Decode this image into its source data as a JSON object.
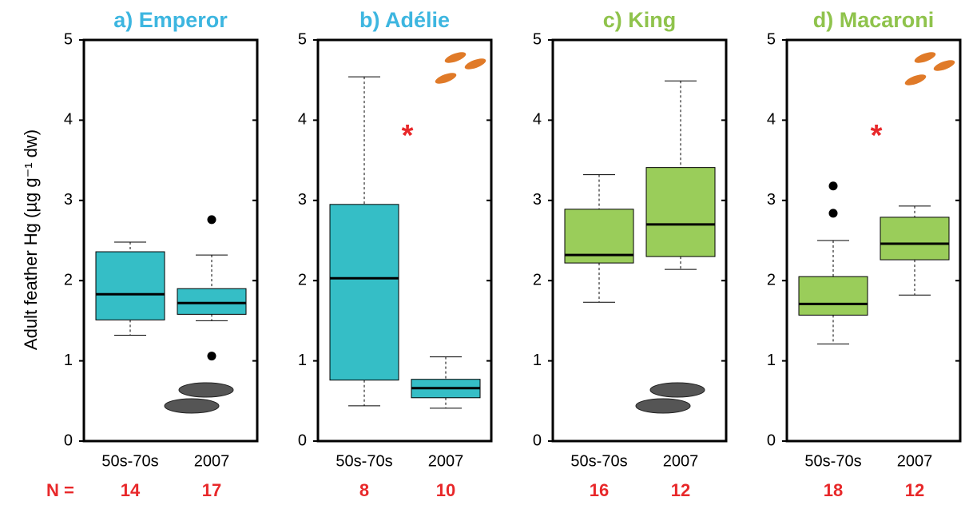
{
  "chart_data": [
    {
      "type": "box",
      "title": "a) Emperor",
      "title_color": "#3db6e0",
      "color": "#35bec6",
      "ylabel": "Adult feather Hg (µg g⁻¹ dw)",
      "n_label": "N =",
      "categories": [
        "50s-70s",
        "2007"
      ],
      "boxes": [
        {
          "min": 1.32,
          "q1": 1.51,
          "median": 1.83,
          "q3": 2.36,
          "max": 2.48,
          "outliers": []
        },
        {
          "min": 1.5,
          "q1": 1.58,
          "median": 1.72,
          "q3": 1.9,
          "max": 2.32,
          "outliers": [
            2.76,
            1.06
          ]
        }
      ],
      "n": [
        14,
        17
      ],
      "ylim": [
        0,
        5
      ],
      "yticks": [
        0,
        1,
        2,
        3,
        4,
        5
      ]
    },
    {
      "type": "box",
      "title": "b) Adélie",
      "title_color": "#3db6e0",
      "color": "#35bec6",
      "categories": [
        "50s-70s",
        "2007"
      ],
      "boxes": [
        {
          "min": 0.44,
          "q1": 0.76,
          "median": 2.03,
          "q3": 2.95,
          "max": 4.54,
          "outliers": []
        },
        {
          "min": 0.41,
          "q1": 0.54,
          "median": 0.66,
          "q3": 0.77,
          "max": 1.05,
          "outliers": []
        }
      ],
      "n": [
        8,
        10
      ],
      "annotation": "*",
      "ylim": [
        0,
        5
      ],
      "yticks": [
        0,
        1,
        2,
        3,
        4,
        5
      ]
    },
    {
      "type": "box",
      "title": "c) King",
      "title_color": "#8fc34c",
      "color": "#9acd5a",
      "categories": [
        "50s-70s",
        "2007"
      ],
      "boxes": [
        {
          "min": 1.73,
          "q1": 2.22,
          "median": 2.32,
          "q3": 2.89,
          "max": 3.32,
          "outliers": []
        },
        {
          "min": 2.14,
          "q1": 2.3,
          "median": 2.7,
          "q3": 3.41,
          "max": 4.49,
          "outliers": []
        }
      ],
      "n": [
        16,
        12
      ],
      "ylim": [
        0,
        5
      ],
      "yticks": [
        0,
        1,
        2,
        3,
        4,
        5
      ]
    },
    {
      "type": "box",
      "title": "d) Macaroni",
      "title_color": "#8fc34c",
      "color": "#9acd5a",
      "categories": [
        "50s-70s",
        "2007"
      ],
      "boxes": [
        {
          "min": 1.21,
          "q1": 1.57,
          "median": 1.71,
          "q3": 2.05,
          "max": 2.5,
          "outliers": [
            2.84,
            3.18
          ]
        },
        {
          "min": 1.82,
          "q1": 2.26,
          "median": 2.46,
          "q3": 2.79,
          "max": 2.93,
          "outliers": []
        }
      ],
      "n": [
        18,
        12
      ],
      "annotation": "*",
      "ylim": [
        0,
        5
      ],
      "yticks": [
        0,
        1,
        2,
        3,
        4,
        5
      ]
    }
  ]
}
